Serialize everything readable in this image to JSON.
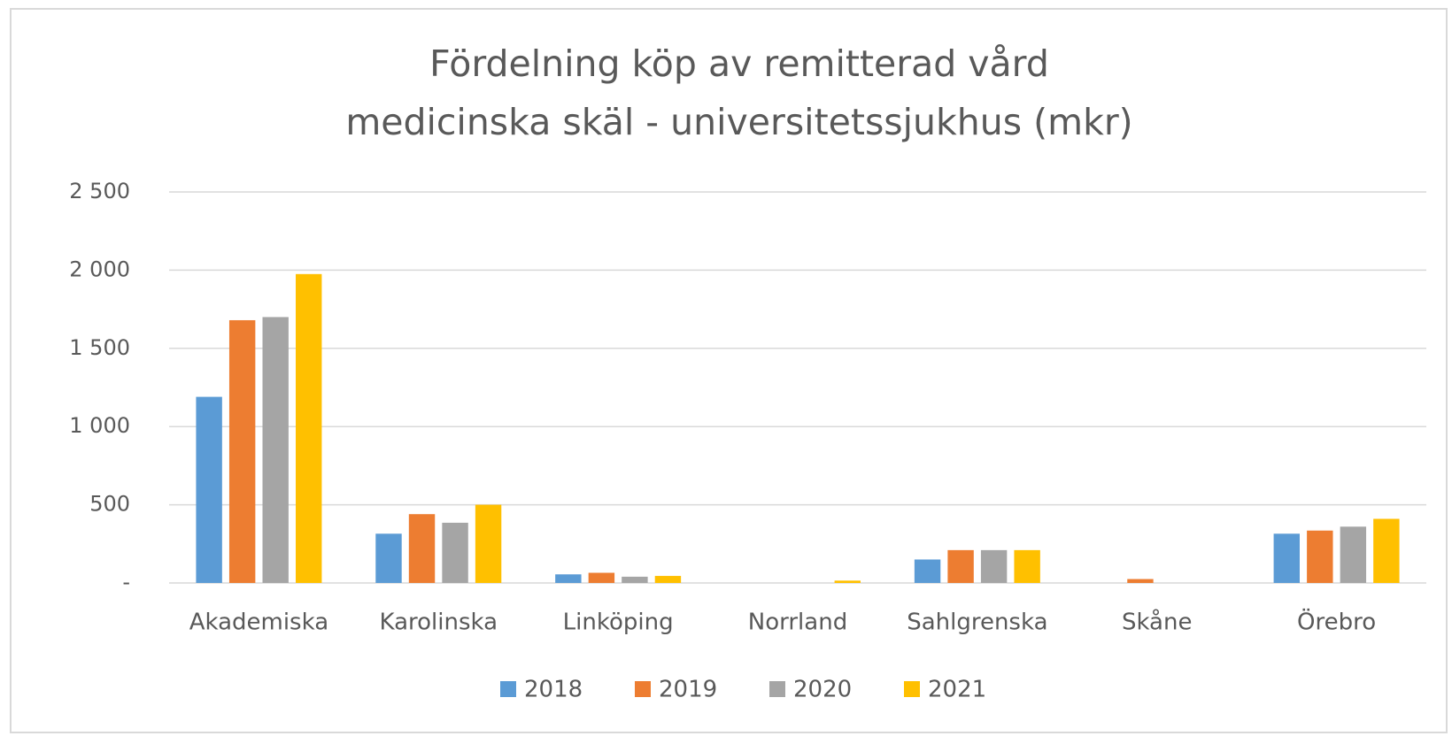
{
  "chart_data": {
    "type": "bar",
    "title": [
      "Fördelning köp av remitterad vård",
      "medicinska skäl - universitetssjukhus (mkr)"
    ],
    "categories": [
      "Akademiska",
      "Karolinska",
      "Linköping",
      "Norrland",
      "Sahlgrenska",
      "Skåne",
      "Örebro"
    ],
    "series": [
      {
        "name": "2018",
        "color": "#5b9bd5",
        "values": [
          1190,
          315,
          55,
          0,
          150,
          0,
          315
        ]
      },
      {
        "name": "2019",
        "color": "#ed7d31",
        "values": [
          1680,
          440,
          65,
          0,
          210,
          25,
          335
        ]
      },
      {
        "name": "2020",
        "color": "#a5a5a5",
        "values": [
          1700,
          385,
          40,
          0,
          210,
          0,
          360
        ]
      },
      {
        "name": "2021",
        "color": "#ffc000",
        "values": [
          1975,
          500,
          45,
          15,
          210,
          0,
          410
        ]
      }
    ],
    "ylim": [
      0,
      2500
    ],
    "yticks": [
      {
        "value": 0,
        "label": "-"
      },
      500,
      {
        "value": 1000,
        "label": "1 000"
      },
      {
        "value": 1500,
        "label": "1 500"
      },
      {
        "value": 2000,
        "label": "2 000"
      },
      {
        "value": 2500,
        "label": "2 500"
      }
    ],
    "grid": true,
    "legend": "bottom"
  }
}
